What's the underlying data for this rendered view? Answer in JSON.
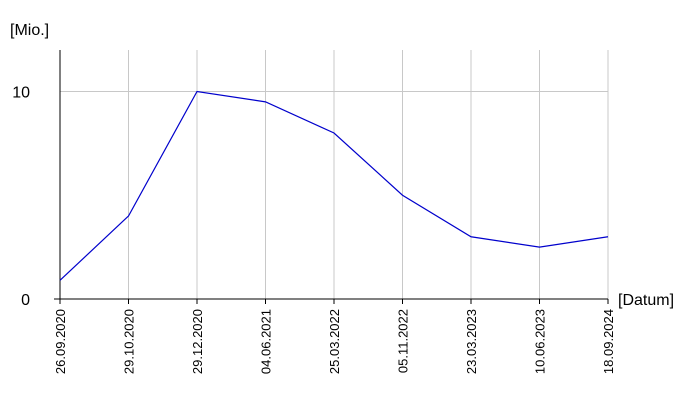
{
  "chart_data": {
    "type": "line",
    "y_label": "[Mio.]",
    "x_label": "[Datum]",
    "categories": [
      "26.09.2020",
      "29.10.2020",
      "29.12.2020",
      "04.06.2021",
      "25.03.2022",
      "05.11.2022",
      "23.03.2023",
      "10.06.2023",
      "18.09.2024"
    ],
    "series": [
      {
        "color": "#0000cc",
        "values": [
          0.9,
          4.0,
          10.0,
          9.5,
          8.0,
          5.0,
          3.0,
          2.5,
          3.0
        ]
      }
    ],
    "ylim": [
      0,
      12
    ],
    "yticks": [
      0,
      10
    ],
    "grid": true
  }
}
